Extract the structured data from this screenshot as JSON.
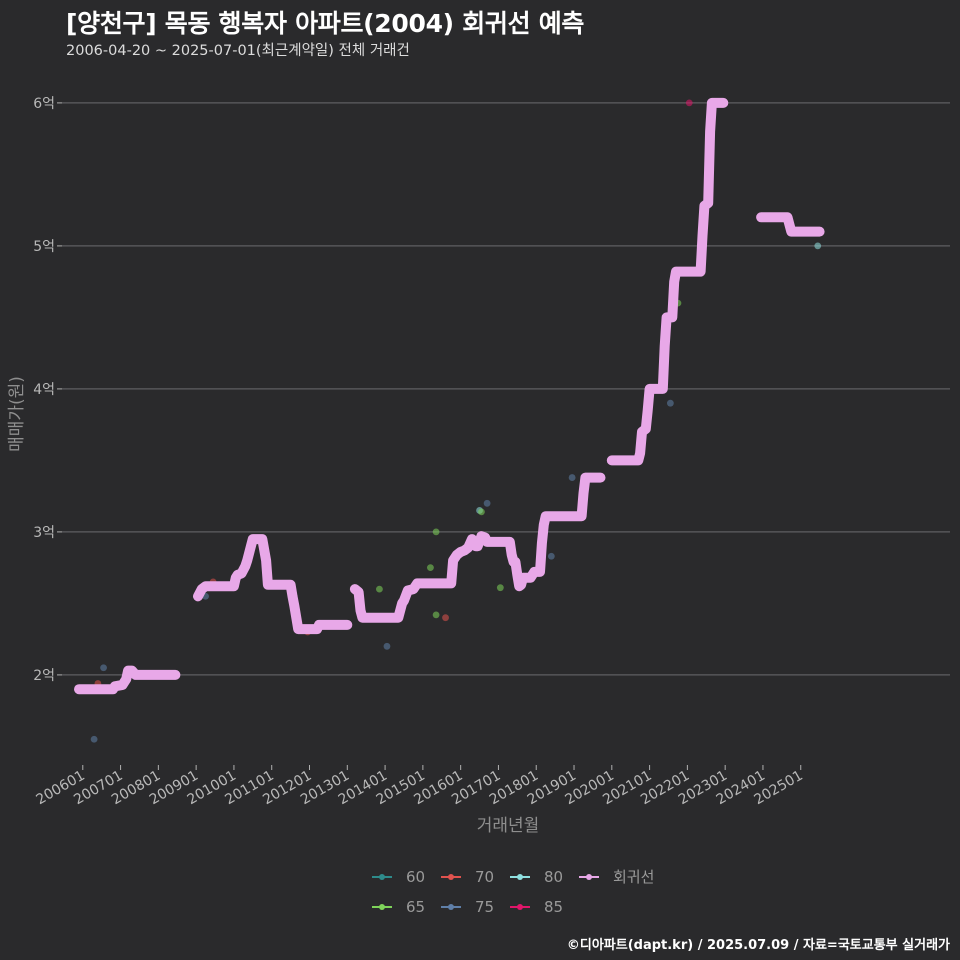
{
  "title": "[양천구] 목동 행복자 아파트(2004) 회귀선 예측",
  "subtitle": "2006-04-20 ~ 2025-07-01(최근계약일) 전체 거래건",
  "footer": "©디아파트(dapt.kr) / 2025.07.09 / 자료=국토교통부 실거래가",
  "chart_data": {
    "type": "scatter",
    "xlabel": "거래년월",
    "ylabel": "매매가(원)",
    "xlim": [
      2005.45,
      2028.95
    ],
    "ylim": [
      1.37,
      6.3
    ],
    "x_ticks": [
      {
        "value": 2006,
        "label": "200601"
      },
      {
        "value": 2007,
        "label": "200701"
      },
      {
        "value": 2008,
        "label": "200801"
      },
      {
        "value": 2009,
        "label": "200901"
      },
      {
        "value": 2010,
        "label": "201001"
      },
      {
        "value": 2011,
        "label": "201101"
      },
      {
        "value": 2012,
        "label": "201201"
      },
      {
        "value": 2013,
        "label": "201301"
      },
      {
        "value": 2014,
        "label": "201401"
      },
      {
        "value": 2015,
        "label": "201501"
      },
      {
        "value": 2016,
        "label": "201601"
      },
      {
        "value": 2017,
        "label": "201701"
      },
      {
        "value": 2018,
        "label": "201801"
      },
      {
        "value": 2019,
        "label": "201901"
      },
      {
        "value": 2020,
        "label": "202001"
      },
      {
        "value": 2021,
        "label": "202101"
      },
      {
        "value": 2022,
        "label": "202201"
      },
      {
        "value": 2023,
        "label": "202301"
      },
      {
        "value": 2024,
        "label": "202401"
      },
      {
        "value": 2025,
        "label": "202501"
      }
    ],
    "y_ticks": [
      {
        "value": 2,
        "label": "2억"
      },
      {
        "value": 3,
        "label": "3억"
      },
      {
        "value": 4,
        "label": "4억"
      },
      {
        "value": 5,
        "label": "5억"
      },
      {
        "value": 6,
        "label": "6억"
      }
    ],
    "legend": [
      {
        "name": "60",
        "color": "#2e8b8b"
      },
      {
        "name": "65",
        "color": "#7ed35a"
      },
      {
        "name": "70",
        "color": "#e0524e"
      },
      {
        "name": "75",
        "color": "#5f7fa8"
      },
      {
        "name": "80",
        "color": "#8fe0e0"
      },
      {
        "name": "85",
        "color": "#e0166a"
      },
      {
        "name": "회귀선",
        "color": "#e8a8e8"
      }
    ],
    "scatter_points": [
      {
        "x": 2006.3,
        "y": 1.55,
        "area": "75"
      },
      {
        "x": 2006.4,
        "y": 1.94,
        "area": "70"
      },
      {
        "x": 2006.55,
        "y": 2.05,
        "area": "75"
      },
      {
        "x": 2009.25,
        "y": 2.55,
        "area": "75"
      },
      {
        "x": 2009.45,
        "y": 2.65,
        "area": "70"
      },
      {
        "x": 2010.55,
        "y": 2.95,
        "area": "80"
      },
      {
        "x": 2011.95,
        "y": 2.3,
        "area": "70"
      },
      {
        "x": 2013.85,
        "y": 2.6,
        "area": "65"
      },
      {
        "x": 2014.05,
        "y": 2.2,
        "area": "75"
      },
      {
        "x": 2015.2,
        "y": 2.75,
        "area": "65"
      },
      {
        "x": 2015.35,
        "y": 3.0,
        "area": "65"
      },
      {
        "x": 2015.35,
        "y": 2.42,
        "area": "65"
      },
      {
        "x": 2015.6,
        "y": 2.4,
        "area": "70"
      },
      {
        "x": 2016.5,
        "y": 3.15,
        "area": "80"
      },
      {
        "x": 2016.55,
        "y": 3.14,
        "area": "65"
      },
      {
        "x": 2016.7,
        "y": 3.2,
        "area": "75"
      },
      {
        "x": 2017.05,
        "y": 2.61,
        "area": "65"
      },
      {
        "x": 2018.4,
        "y": 2.83,
        "area": "75"
      },
      {
        "x": 2018.95,
        "y": 3.38,
        "area": "75"
      },
      {
        "x": 2020.7,
        "y": 3.5,
        "area": "60"
      },
      {
        "x": 2021.55,
        "y": 3.9,
        "area": "75"
      },
      {
        "x": 2021.75,
        "y": 4.6,
        "area": "65"
      },
      {
        "x": 2022.05,
        "y": 6.0,
        "area": "85"
      },
      {
        "x": 2025.45,
        "y": 5.0,
        "area": "80"
      }
    ],
    "regression_line": [
      [
        [
          2005.9,
          1.9
        ],
        [
          2006.8,
          1.9
        ],
        [
          2006.85,
          1.92
        ],
        [
          2007.05,
          1.93
        ],
        [
          2007.15,
          1.97
        ],
        [
          2007.2,
          2.03
        ],
        [
          2007.3,
          2.03
        ],
        [
          2007.4,
          2.0
        ],
        [
          2008.45,
          2.0
        ]
      ],
      [
        [
          2009.05,
          2.55
        ],
        [
          2009.15,
          2.6
        ],
        [
          2009.25,
          2.62
        ],
        [
          2010.0,
          2.62
        ],
        [
          2010.05,
          2.68
        ],
        [
          2010.1,
          2.7
        ],
        [
          2010.2,
          2.71
        ],
        [
          2010.3,
          2.76
        ],
        [
          2010.35,
          2.8
        ],
        [
          2010.45,
          2.9
        ],
        [
          2010.5,
          2.95
        ],
        [
          2010.75,
          2.95
        ],
        [
          2010.85,
          2.8
        ],
        [
          2010.9,
          2.63
        ],
        [
          2011.5,
          2.63
        ],
        [
          2011.55,
          2.55
        ],
        [
          2011.6,
          2.48
        ],
        [
          2011.65,
          2.4
        ],
        [
          2011.7,
          2.32
        ],
        [
          2012.2,
          2.32
        ],
        [
          2012.25,
          2.35
        ],
        [
          2013.0,
          2.35
        ]
      ],
      [
        [
          2013.2,
          2.6
        ],
        [
          2013.3,
          2.58
        ],
        [
          2013.35,
          2.45
        ],
        [
          2013.4,
          2.4
        ],
        [
          2014.35,
          2.4
        ],
        [
          2014.45,
          2.5
        ],
        [
          2014.5,
          2.52
        ],
        [
          2014.6,
          2.59
        ],
        [
          2014.75,
          2.6
        ],
        [
          2014.85,
          2.64
        ],
        [
          2015.75,
          2.64
        ],
        [
          2015.8,
          2.8
        ],
        [
          2015.9,
          2.84
        ],
        [
          2016.0,
          2.86
        ],
        [
          2016.1,
          2.87
        ],
        [
          2016.2,
          2.89
        ],
        [
          2016.3,
          2.95
        ],
        [
          2016.4,
          2.9
        ],
        [
          2016.45,
          2.9
        ],
        [
          2016.55,
          2.97
        ],
        [
          2016.65,
          2.96
        ],
        [
          2016.7,
          2.93
        ],
        [
          2017.3,
          2.93
        ],
        [
          2017.35,
          2.84
        ],
        [
          2017.4,
          2.79
        ],
        [
          2017.45,
          2.79
        ],
        [
          2017.5,
          2.7
        ],
        [
          2017.55,
          2.62
        ],
        [
          2017.6,
          2.63
        ],
        [
          2017.65,
          2.68
        ],
        [
          2017.75,
          2.68
        ],
        [
          2017.85,
          2.68
        ],
        [
          2017.95,
          2.72
        ],
        [
          2018.1,
          2.72
        ],
        [
          2018.15,
          2.92
        ],
        [
          2018.2,
          3.05
        ],
        [
          2018.25,
          3.11
        ],
        [
          2019.2,
          3.11
        ],
        [
          2019.25,
          3.27
        ],
        [
          2019.3,
          3.38
        ],
        [
          2019.7,
          3.38
        ]
      ],
      [
        [
          2020.0,
          3.5
        ],
        [
          2020.7,
          3.5
        ],
        [
          2020.75,
          3.55
        ],
        [
          2020.8,
          3.7
        ],
        [
          2020.9,
          3.72
        ],
        [
          2020.95,
          3.85
        ],
        [
          2021.0,
          4.0
        ],
        [
          2021.35,
          4.0
        ],
        [
          2021.4,
          4.3
        ],
        [
          2021.45,
          4.5
        ],
        [
          2021.6,
          4.5
        ],
        [
          2021.65,
          4.75
        ],
        [
          2021.7,
          4.82
        ],
        [
          2022.35,
          4.82
        ],
        [
          2022.4,
          5.07
        ],
        [
          2022.45,
          5.28
        ],
        [
          2022.55,
          5.3
        ],
        [
          2022.6,
          5.8
        ],
        [
          2022.65,
          6.0
        ],
        [
          2022.95,
          6.0
        ]
      ],
      [
        [
          2023.95,
          5.2
        ],
        [
          2024.65,
          5.2
        ],
        [
          2024.7,
          5.15
        ],
        [
          2024.75,
          5.1
        ],
        [
          2025.5,
          5.1
        ]
      ]
    ]
  }
}
